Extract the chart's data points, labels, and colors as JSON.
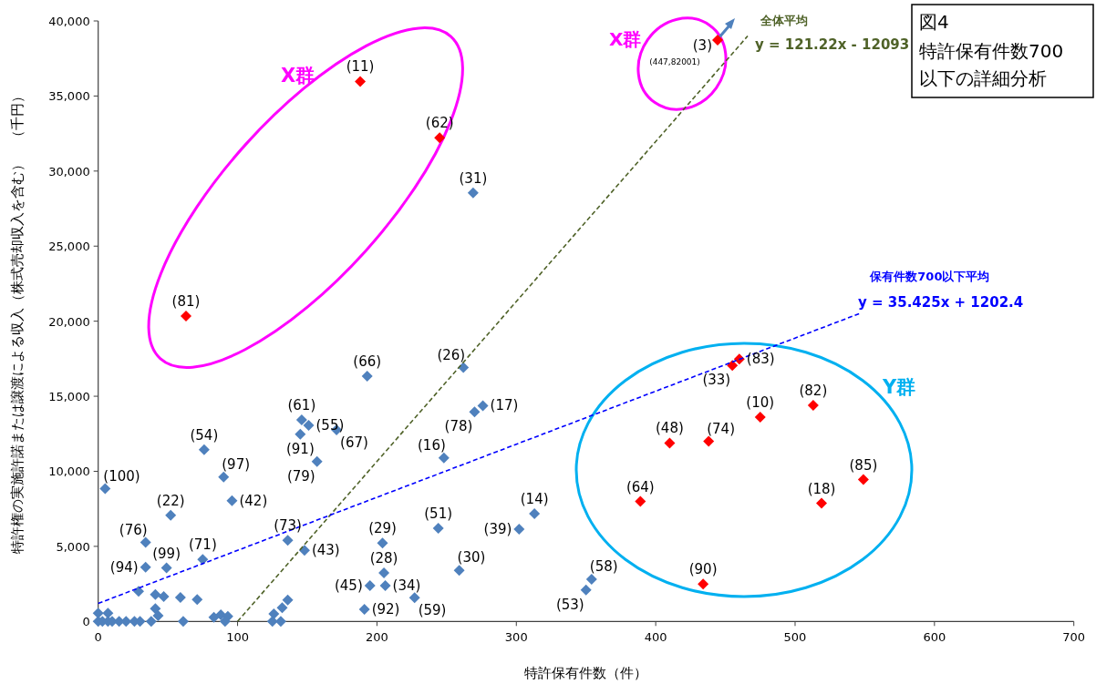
{
  "chart_data": {
    "type": "scatter",
    "title": "図4",
    "subtitle": "特許保有件数700以下の詳細分析",
    "xlabel": "特許保有件数（件）",
    "ylabel": "特許権の実施許諾または譲渡による収入（株式売却収入を含む）　（千円）",
    "xlim": [
      0,
      700
    ],
    "ylim": [
      0,
      40000
    ],
    "xticks": [
      0,
      100,
      200,
      300,
      400,
      500,
      600,
      700
    ],
    "yticks": [
      0,
      {
        "value": 5000,
        "label": "5,000"
      },
      {
        "value": 10000,
        "label": "10,000"
      },
      {
        "value": 15000,
        "label": "15,000"
      },
      {
        "value": 20000,
        "label": "20,000"
      },
      {
        "value": 25000,
        "label": "25,000"
      },
      {
        "value": 30000,
        "label": "30,000"
      },
      {
        "value": 35000,
        "label": "35,000"
      },
      {
        "value": 40000,
        "label": "40,000"
      }
    ],
    "marker": "diamond",
    "annotations": [
      "X群",
      "X群",
      "Y群",
      "(3)",
      "(447,82001)",
      "y = 121.22x - 12093",
      "y = 35.425x + 1202.4",
      {
        "text": "(100)",
        "x": 5,
        "y": 8840
      },
      {
        "text": "(54)",
        "x": 76,
        "y": 11440
      },
      {
        "text": "(97)",
        "x": 90,
        "y": 9620
      },
      {
        "text": "(42)",
        "x": 96,
        "y": 8040
      },
      {
        "text": "(22)",
        "x": 52,
        "y": 7070
      },
      {
        "text": "(76)",
        "x": 34,
        "y": 5260
      },
      {
        "text": "(94)",
        "x": 34,
        "y": 3620
      },
      {
        "text": "(99)",
        "x": 49,
        "y": 3560
      },
      {
        "text": "(71)",
        "x": 75,
        "y": 4130
      },
      {
        "text": "(61)",
        "x": 146,
        "y": 13430
      },
      {
        "text": "(55)",
        "x": 151,
        "y": 13060
      },
      {
        "text": "(91)",
        "x": 145,
        "y": 12470
      },
      {
        "text": "(79)",
        "x": 157,
        "y": 10650
      },
      {
        "text": "(67)",
        "x": 171,
        "y": 12760
      },
      {
        "text": "(73)",
        "x": 136,
        "y": 5410
      },
      {
        "text": "(43)",
        "x": 148,
        "y": 4740
      },
      {
        "text": "(66)",
        "x": 193,
        "y": 16340
      },
      {
        "text": "(26)",
        "x": 262,
        "y": 16910
      },
      {
        "text": "(17)",
        "x": 276,
        "y": 14370
      },
      {
        "text": "(78)",
        "x": 270,
        "y": 13950
      },
      {
        "text": "(16)",
        "x": 248,
        "y": 10890
      },
      {
        "text": "(14)",
        "x": 313,
        "y": 7170
      },
      {
        "text": "(39)",
        "x": 302,
        "y": 6140
      },
      {
        "text": "(51)",
        "x": 244,
        "y": 6200
      },
      {
        "text": "(29)",
        "x": 204,
        "y": 5220
      },
      {
        "text": "(28)",
        "x": 205,
        "y": 3240
      },
      {
        "text": "(45)",
        "x": 195,
        "y": 2390
      },
      {
        "text": "(34)",
        "x": 206,
        "y": 2390
      },
      {
        "text": "(59)",
        "x": 227,
        "y": 1580
      },
      {
        "text": "(30)",
        "x": 259,
        "y": 3400
      },
      {
        "text": "(92)",
        "x": 191,
        "y": 810
      },
      {
        "text": "(58)",
        "x": 354,
        "y": 2810
      },
      {
        "text": "(53)",
        "x": 350,
        "y": 2100
      },
      {
        "text": "(31)",
        "x": 269,
        "y": 28550
      },
      {
        "text": "(11)",
        "x": 188,
        "y": 35970
      },
      {
        "text": "(62)",
        "x": 245,
        "y": 32220
      },
      {
        "text": "(81)",
        "x": 63,
        "y": 20350
      },
      {
        "text": "(33)",
        "x": 455,
        "y": 17050
      },
      {
        "text": "(83)",
        "x": 460,
        "y": 17470
      },
      {
        "text": "(10)",
        "x": 475,
        "y": 13610
      },
      {
        "text": "(82)",
        "x": 513,
        "y": 14400
      },
      {
        "text": "(48)",
        "x": 410,
        "y": 11880
      },
      {
        "text": "(74)",
        "x": 438,
        "y": 12000
      },
      {
        "text": "(64)",
        "x": 389,
        "y": 7990
      },
      {
        "text": "(18)",
        "x": 519,
        "y": 7870
      },
      {
        "text": "(85)",
        "x": 549,
        "y": 9450
      },
      {
        "text": "(90)",
        "x": 434,
        "y": 2490
      }
    ],
    "series": [
      {
        "color": "#4f81bd",
        "x": [
          5,
          76,
          90,
          96,
          52,
          34,
          34,
          49,
          75,
          146,
          151,
          145,
          157,
          171,
          136,
          148,
          193,
          262,
          276,
          270,
          248,
          313,
          302,
          244,
          204,
          205,
          195,
          206,
          227,
          259,
          191,
          354,
          350,
          269,
          29,
          41,
          47,
          59,
          71,
          41,
          43,
          136,
          132,
          126,
          125,
          131,
          83,
          88,
          93,
          91,
          61,
          38,
          0,
          7,
          0,
          3,
          7,
          10,
          15,
          20,
          26,
          30
        ],
        "values": [
          8840,
          11440,
          9620,
          8040,
          7070,
          5260,
          3620,
          3560,
          4130,
          13430,
          13060,
          12470,
          10650,
          12760,
          5410,
          4740,
          16340,
          16910,
          14370,
          13950,
          10890,
          7170,
          6140,
          6200,
          5220,
          3240,
          2390,
          2390,
          1580,
          3400,
          810,
          2810,
          2100,
          28550,
          2000,
          1800,
          1660,
          1600,
          1460,
          850,
          380,
          1430,
          910,
          500,
          0,
          0,
          280,
          440,
          340,
          0,
          0,
          0,
          550,
          550,
          0,
          0,
          0,
          0,
          0,
          0,
          0,
          0
        ]
      },
      {
        "color": "#ff0000",
        "x": [
          188,
          245,
          63,
          455,
          460,
          475,
          513,
          410,
          438,
          389,
          519,
          549,
          434
        ],
        "values": [
          35970,
          32220,
          20350,
          17050,
          17470,
          13610,
          14400,
          11880,
          12000,
          7990,
          7870,
          9450,
          2490
        ]
      },
      {
        "type": "line",
        "name": "全体平均",
        "color": "#4f6228",
        "line_style": "dashed",
        "marker": "none",
        "x": [
          100,
          466
        ],
        "values": [
          0,
          39000
        ]
      },
      {
        "type": "line",
        "name": "保有件数700以下平均",
        "color": "#0000ff",
        "line_style": "dashed",
        "marker": "none",
        "x": [
          0,
          546
        ],
        "values": [
          1200,
          20500
        ]
      }
    ]
  }
}
